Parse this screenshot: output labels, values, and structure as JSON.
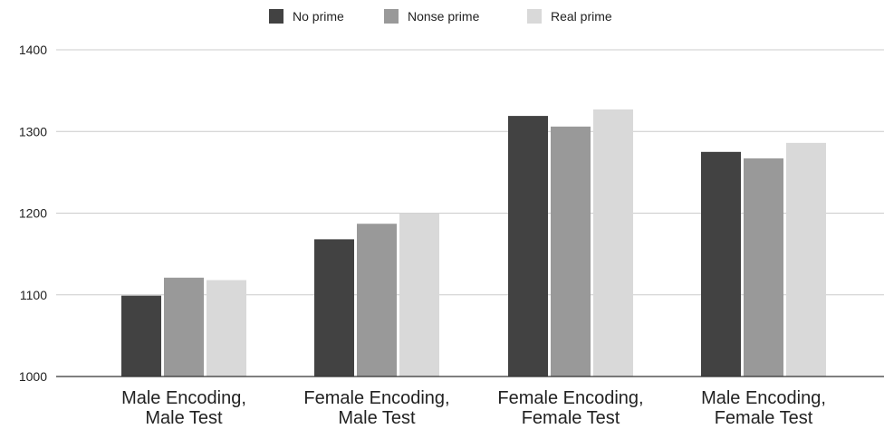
{
  "chart_data": {
    "type": "bar",
    "title": "",
    "xlabel": "",
    "ylabel": "",
    "ylim": [
      1000,
      1400
    ],
    "yticks": [
      1000,
      1100,
      1200,
      1300,
      1400
    ],
    "grid": true,
    "legend_position": "top-center",
    "categories": [
      [
        "Male Encoding,",
        "Male Test"
      ],
      [
        "Female Encoding,",
        "Male Test"
      ],
      [
        "Female Encoding,",
        "Female Test"
      ],
      [
        "Male Encoding,",
        "Female Test"
      ]
    ],
    "series": [
      {
        "name": "No prime",
        "color": "#424242",
        "values": [
          1099,
          1168,
          1319,
          1275
        ]
      },
      {
        "name": "Nonse prime",
        "color": "#999999",
        "values": [
          1121,
          1187,
          1306,
          1267
        ]
      },
      {
        "name": "Real prime",
        "color": "#d9d9d9",
        "values": [
          1118,
          1200,
          1327,
          1286
        ]
      }
    ],
    "gridline_color": "#cccccc",
    "axis_color": "#333333"
  }
}
